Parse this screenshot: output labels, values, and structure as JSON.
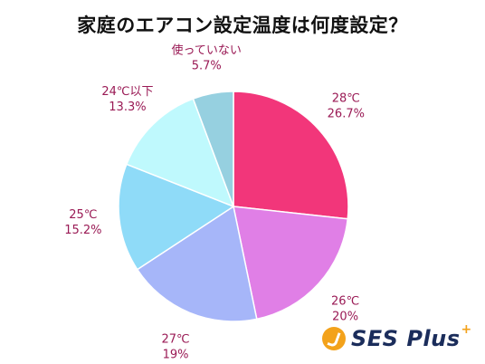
{
  "chart_data": {
    "type": "pie",
    "title": "家庭のエアコン設定温度は何度設定？",
    "slices": [
      {
        "name": "28℃",
        "percent_label": "26.7%",
        "value": 26.7,
        "color": "#f2367a"
      },
      {
        "name": "26℃",
        "percent_label": "20%",
        "value": 20.0,
        "color": "#e07fe6"
      },
      {
        "name": "27℃",
        "percent_label": "19%",
        "value": 19.0,
        "color": "#a6b6f9"
      },
      {
        "name": "25℃",
        "percent_label": "15.2%",
        "value": 15.2,
        "color": "#8fdbf8"
      },
      {
        "name": "24℃以下",
        "percent_label": "13.3%",
        "value": 13.3,
        "color": "#bff9fd"
      },
      {
        "name": "使っていない",
        "percent_label": "5.7%",
        "value": 5.7,
        "color": "#96d0e0"
      }
    ],
    "start_angle_deg": 0,
    "direction": "clockwise"
  },
  "logo": {
    "text": "SES Plus",
    "plus": "+"
  }
}
